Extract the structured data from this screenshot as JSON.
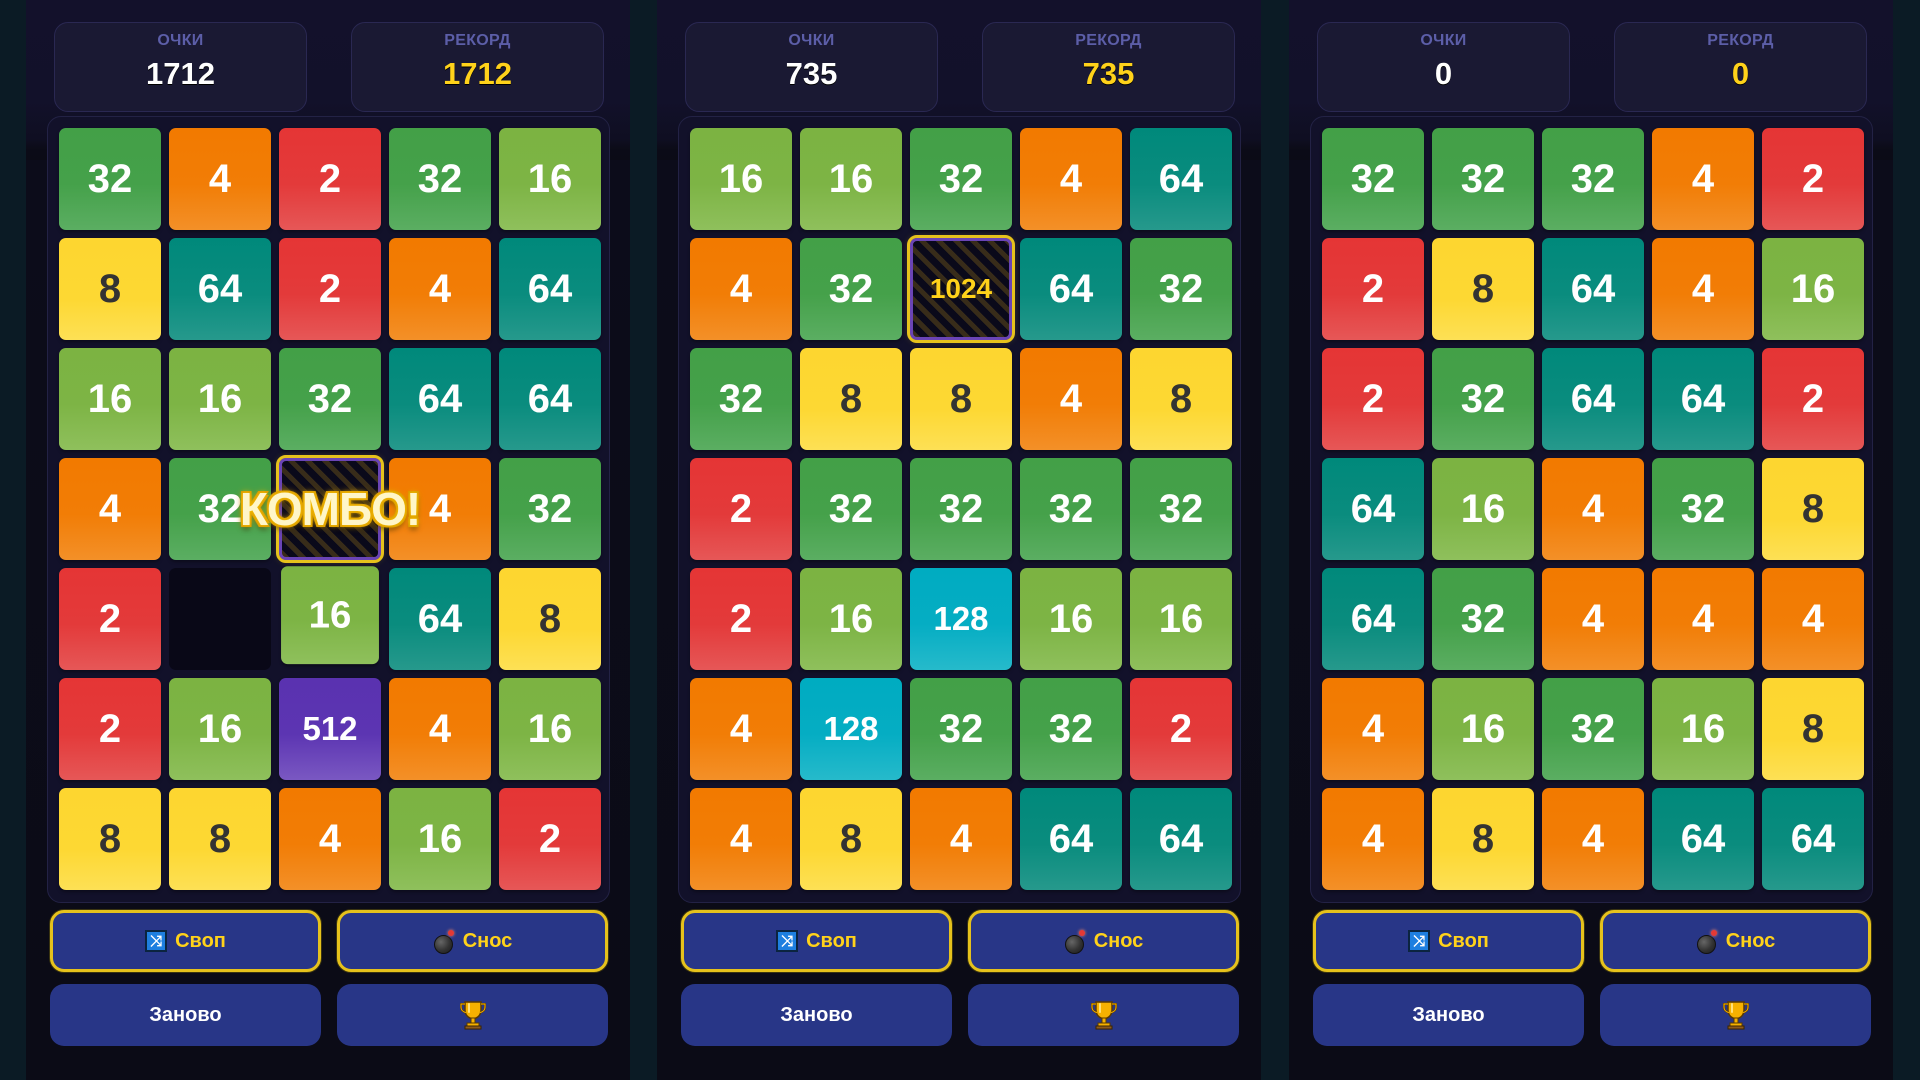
{
  "labels": {
    "score": "ОЧКИ",
    "record": "РЕКОРД",
    "swap": "Своп",
    "bomb": "Снос",
    "restart": "Заново",
    "combo": "КОМБО!"
  },
  "icons": {
    "swap": "shuffle-icon",
    "bomb": "bomb-icon",
    "trophy": "trophy-icon"
  },
  "colors": {
    "tile_2": "#e53535",
    "tile_4": "#f27a00",
    "tile_8": "#fdd630",
    "tile_16": "#7cb342",
    "tile_32": "#43a047",
    "tile_64": "#00897b",
    "tile_128": "#00acc1",
    "tile_512": "#5a32b0",
    "record_value": "#ffd21a",
    "button_bg": "#283687",
    "booster_border": "#e6c21c"
  },
  "panels": [
    {
      "score": "1712",
      "record": "1712",
      "combo_visible": true,
      "grid": [
        [
          "32",
          "4",
          "2",
          "32",
          "16"
        ],
        [
          "8",
          "64",
          "2",
          "4",
          "64"
        ],
        [
          "16",
          "16",
          "32",
          "64",
          "64"
        ],
        [
          "4",
          "32",
          "special",
          "4",
          "32"
        ],
        [
          "2",
          "",
          "16",
          "64",
          "8"
        ],
        [
          "2",
          "16",
          "512",
          "4",
          "16"
        ],
        [
          "8",
          "8",
          "4",
          "16",
          "2"
        ]
      ],
      "special_label": ""
    },
    {
      "score": "735",
      "record": "735",
      "combo_visible": false,
      "grid": [
        [
          "16",
          "16",
          "32",
          "4",
          "64"
        ],
        [
          "4",
          "32",
          "special",
          "64",
          "32"
        ],
        [
          "32",
          "8",
          "8",
          "4",
          "8"
        ],
        [
          "2",
          "32",
          "32",
          "32",
          "32"
        ],
        [
          "2",
          "16",
          "128",
          "16",
          "16"
        ],
        [
          "4",
          "128",
          "32",
          "32",
          "2"
        ],
        [
          "4",
          "8",
          "4",
          "64",
          "64"
        ]
      ],
      "special_label": "1024"
    },
    {
      "score": "0",
      "record": "0",
      "combo_visible": false,
      "grid": [
        [
          "32",
          "32",
          "32",
          "4",
          "2"
        ],
        [
          "2",
          "8",
          "64",
          "4",
          "16"
        ],
        [
          "2",
          "32",
          "64",
          "64",
          "2"
        ],
        [
          "64",
          "16",
          "4",
          "32",
          "8"
        ],
        [
          "64",
          "32",
          "4",
          "4",
          "4"
        ],
        [
          "4",
          "16",
          "32",
          "16",
          "8"
        ],
        [
          "4",
          "8",
          "4",
          "64",
          "64"
        ]
      ],
      "special_label": ""
    }
  ]
}
